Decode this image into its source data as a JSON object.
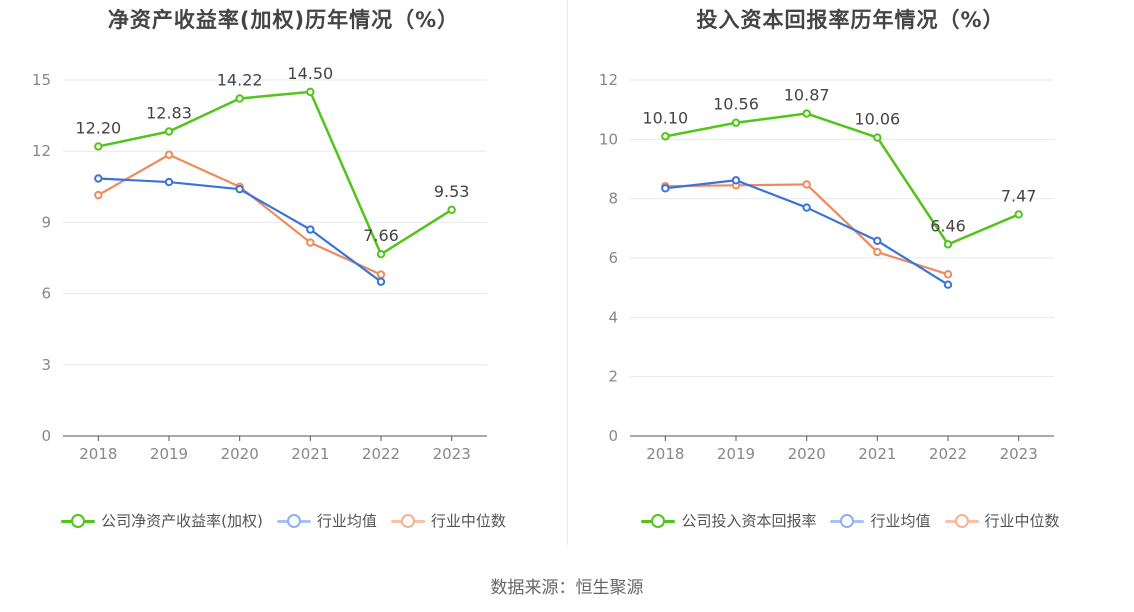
{
  "colors": {
    "company": "#52c41a",
    "avg": "#3a74d9",
    "median": "#f08a5d"
  },
  "charts": [
    {
      "title": "净资产收益率(加权)历年情况（%）",
      "legend": [
        "公司净资产收益率(加权)",
        "行业均值",
        "行业中位数"
      ]
    },
    {
      "title": "投入资本回报率历年情况（%）",
      "legend": [
        "公司投入资本回报率",
        "行业均值",
        "行业中位数"
      ]
    }
  ],
  "footer": "数据来源：恒生聚源",
  "chart_data": [
    {
      "type": "line",
      "title": "净资产收益率(加权)历年情况（%）",
      "categories": [
        "2018",
        "2019",
        "2020",
        "2021",
        "2022",
        "2023"
      ],
      "ylim": [
        0,
        15
      ],
      "yticks": [
        0,
        3,
        6,
        9,
        12,
        15
      ],
      "grid": true,
      "legend_position": "bottom",
      "series": [
        {
          "name": "公司净资产收益率(加权)",
          "values": [
            12.2,
            12.83,
            14.22,
            14.5,
            7.66,
            9.53
          ],
          "labels": [
            "12.20",
            "12.83",
            "14.22",
            "14.50",
            "7.66",
            "9.53"
          ]
        },
        {
          "name": "行业均值",
          "values": [
            10.85,
            10.7,
            10.4,
            8.7,
            6.5,
            null
          ]
        },
        {
          "name": "行业中位数",
          "values": [
            10.15,
            11.85,
            10.5,
            8.15,
            6.8,
            null
          ]
        }
      ]
    },
    {
      "type": "line",
      "title": "投入资本回报率历年情况（%）",
      "categories": [
        "2018",
        "2019",
        "2020",
        "2021",
        "2022",
        "2023"
      ],
      "ylim": [
        0,
        12
      ],
      "yticks": [
        0,
        2,
        4,
        6,
        8,
        10,
        12
      ],
      "grid": true,
      "legend_position": "bottom",
      "series": [
        {
          "name": "公司投入资本回报率",
          "values": [
            10.1,
            10.56,
            10.87,
            10.06,
            6.46,
            7.47
          ],
          "labels": [
            "10.10",
            "10.56",
            "10.87",
            "10.06",
            "6.46",
            "7.47"
          ]
        },
        {
          "name": "行业均值",
          "values": [
            8.35,
            8.62,
            7.7,
            6.58,
            5.1,
            null
          ]
        },
        {
          "name": "行业中位数",
          "values": [
            8.42,
            8.45,
            8.48,
            6.2,
            5.45,
            null
          ]
        }
      ]
    }
  ]
}
